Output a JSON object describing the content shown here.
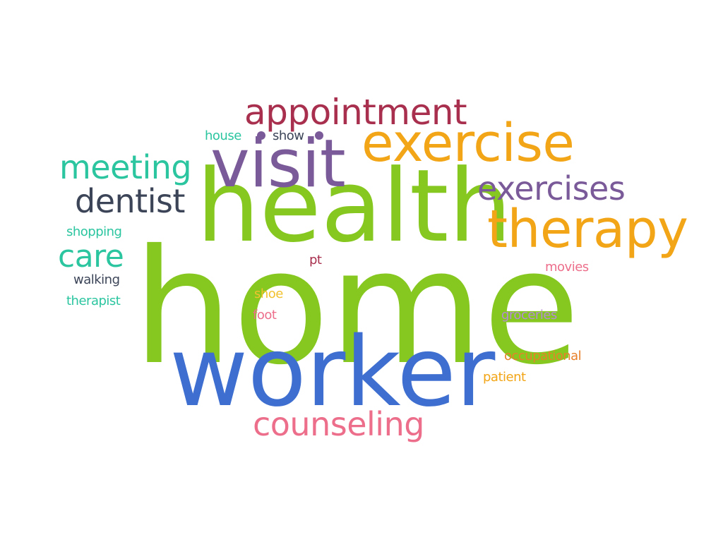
{
  "words": [
    {
      "text": "home",
      "color": "#86c820"
    },
    {
      "text": "health",
      "color": "#86c820"
    },
    {
      "text": "worker",
      "color": "#3e6fd0"
    },
    {
      "text": "visit",
      "color": "#7a5a98"
    },
    {
      "text": "exercise",
      "color": "#f2a516"
    },
    {
      "text": "therapy",
      "color": "#f2a516"
    },
    {
      "text": "appointment",
      "color": "#a8304e"
    },
    {
      "text": "counseling",
      "color": "#ec6e8b"
    },
    {
      "text": "exercises",
      "color": "#7a5a98"
    },
    {
      "text": "meeting",
      "color": "#2bc5a0"
    },
    {
      "text": "dentist",
      "color": "#3c4558"
    },
    {
      "text": "care",
      "color": "#2bc5a0"
    },
    {
      "text": "house",
      "color": "#2bc5a0"
    },
    {
      "text": "show",
      "color": "#3c4558"
    },
    {
      "text": "shopping",
      "color": "#2bc5a0"
    },
    {
      "text": "walking",
      "color": "#3c4558"
    },
    {
      "text": "therapist",
      "color": "#2bc5a0"
    },
    {
      "text": "pt",
      "color": "#a8304e"
    },
    {
      "text": "movies",
      "color": "#ec6e8b"
    },
    {
      "text": "shoe",
      "color": "#f2c12e"
    },
    {
      "text": "foot",
      "color": "#ec6e8b"
    },
    {
      "text": "groceries",
      "color": "#b58ad6"
    },
    {
      "text": "occupational",
      "color": "#e8802a"
    },
    {
      "text": "patient",
      "color": "#f2a516"
    }
  ],
  "dots": [
    {
      "color": "#7a5a98"
    },
    {
      "color": "#7a5a98"
    }
  ]
}
